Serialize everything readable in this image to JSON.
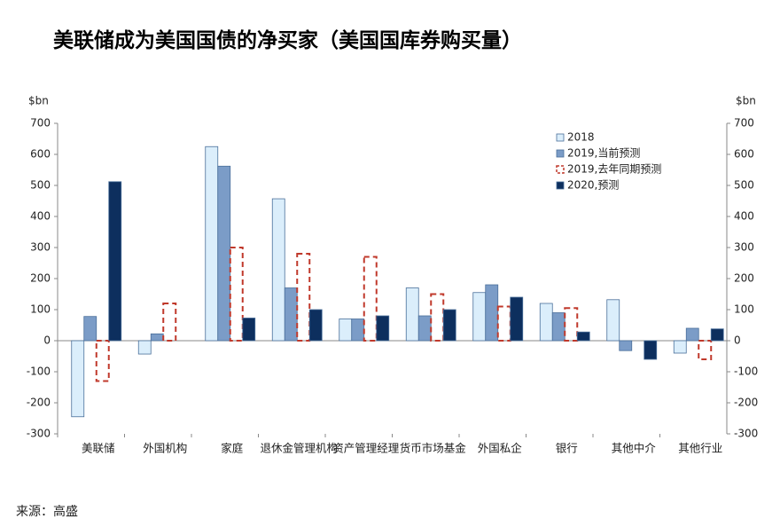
{
  "chart_data": {
    "type": "bar",
    "title": "美联储成为美国国债的净买家（美国国库券购买量）",
    "y_label": "$bn",
    "source": "来源：高盛",
    "categories": [
      "美联储",
      "外国机构",
      "家庭",
      "退休金管理机构",
      "资产管理经理",
      "货币市场基金",
      "外国私企",
      "银行",
      "其他中介",
      "其他行业"
    ],
    "series": [
      {
        "name": "2018",
        "color": "#dbeefb",
        "values": [
          -245,
          -43,
          625,
          457,
          70,
          170,
          155,
          120,
          132,
          -40
        ]
      },
      {
        "name": "2019,当前预测",
        "color": "#7b9cc7",
        "values": [
          78,
          22,
          562,
          170,
          70,
          80,
          180,
          90,
          -32,
          40
        ]
      },
      {
        "name": "2019,去年同期预测",
        "color": "#c0392b",
        "style": "dashed",
        "values": [
          -130,
          120,
          300,
          280,
          270,
          150,
          110,
          105,
          null,
          -60
        ]
      },
      {
        "name": "2020,预测",
        "color": "#0d2f5e",
        "values": [
          512,
          null,
          73,
          100,
          80,
          100,
          140,
          28,
          -60,
          38
        ]
      }
    ],
    "ylim": [
      -300,
      700
    ],
    "yticks": [
      -300,
      -200,
      -100,
      0,
      100,
      200,
      300,
      400,
      500,
      600,
      700
    ],
    "legend": "top-right"
  }
}
